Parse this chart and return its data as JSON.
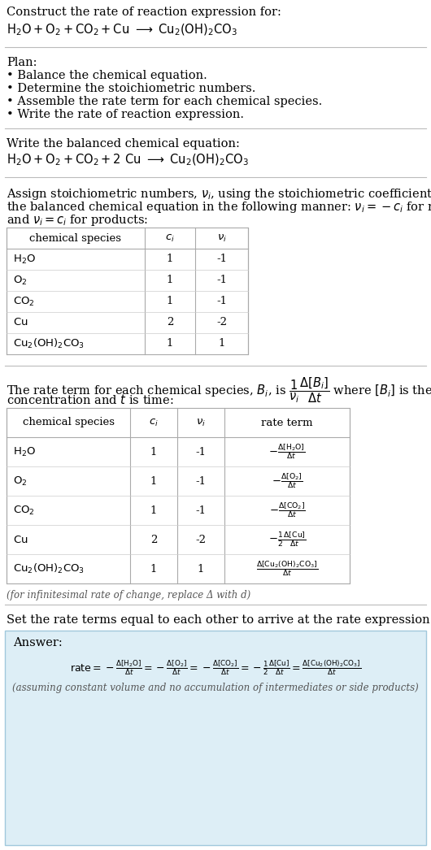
{
  "bg_color": "#ffffff",
  "title_text": "Construct the rate of reaction expression for:",
  "plan_header": "Plan:",
  "plan_items": [
    "• Balance the chemical equation.",
    "• Determine the stoichiometric numbers.",
    "• Assemble the rate term for each chemical species.",
    "• Write the rate of reaction expression."
  ],
  "balanced_header": "Write the balanced chemical equation:",
  "table1_rows": [
    [
      "H_2O",
      "1",
      "-1"
    ],
    [
      "O_2",
      "1",
      "-1"
    ],
    [
      "CO_2",
      "1",
      "-1"
    ],
    [
      "Cu",
      "2",
      "-2"
    ],
    [
      "Cu_2(OH)_2CO_3",
      "1",
      "1"
    ]
  ],
  "table2_rows": [
    [
      "H_2O",
      "1",
      "-1"
    ],
    [
      "O_2",
      "1",
      "-1"
    ],
    [
      "CO_2",
      "1",
      "-1"
    ],
    [
      "Cu",
      "2",
      "-2"
    ],
    [
      "Cu_2(OH)_2CO_3",
      "1",
      "1"
    ]
  ],
  "infinitesimal_note": "(for infinitesimal rate of change, replace Δ with d)",
  "set_equal_header": "Set the rate terms equal to each other to arrive at the rate expression:",
  "answer_label": "Answer:",
  "assuming_note": "(assuming constant volume and no accumulation of intermediates or side products)"
}
